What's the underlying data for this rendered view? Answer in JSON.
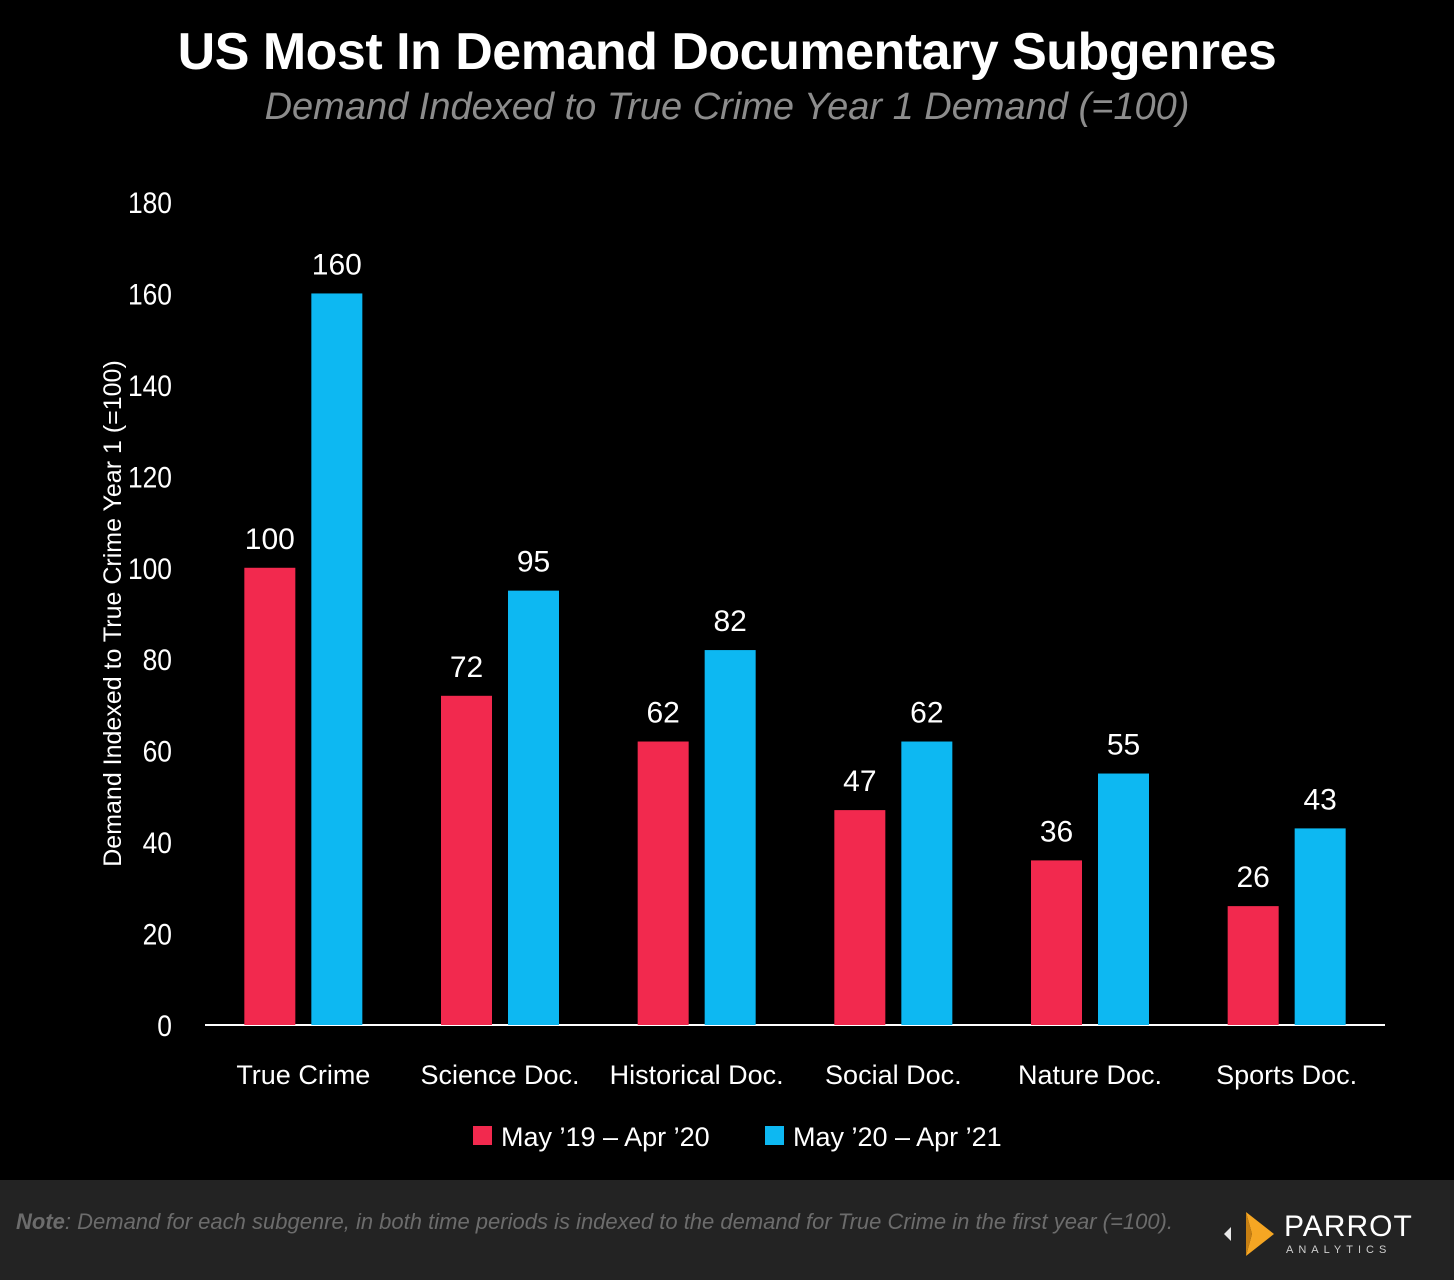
{
  "chart_data": {
    "type": "bar",
    "title": "US Most In Demand Documentary Subgenres",
    "subtitle": "Demand Indexed to True Crime Year 1 Demand (=100)",
    "ylabel": "Demand Indexed to True Crime Year 1 (=100)",
    "xlabel": "",
    "ylim": [
      0,
      180
    ],
    "yticks": [
      0,
      20,
      40,
      60,
      80,
      100,
      120,
      140,
      160,
      180
    ],
    "categories": [
      "True Crime",
      "Science Doc.",
      "Historical Doc.",
      "Social Doc.",
      "Nature Doc.",
      "Sports Doc."
    ],
    "series": [
      {
        "name": "May ’19 – Apr ’20",
        "color": "#f2294e",
        "values": [
          100,
          72,
          62,
          47,
          36,
          26
        ]
      },
      {
        "name": "May ’20 – Apr ’21",
        "color": "#0db8f2",
        "values": [
          160,
          95,
          82,
          62,
          55,
          43
        ]
      }
    ],
    "grid": false,
    "legend": "bottom-center",
    "data_labels": true
  },
  "footer": {
    "note_label": "Note",
    "note_text": ": Demand for each  subgenre, in both time periods is indexed to the demand for True Crime in the first year (=100).",
    "logo_name": "PARROT",
    "logo_sub": "ANALYTICS"
  },
  "colors": {
    "background": "#000000",
    "footer_bg": "#232323",
    "axis": "#ffffff",
    "logo_accent": "#f5a623"
  }
}
